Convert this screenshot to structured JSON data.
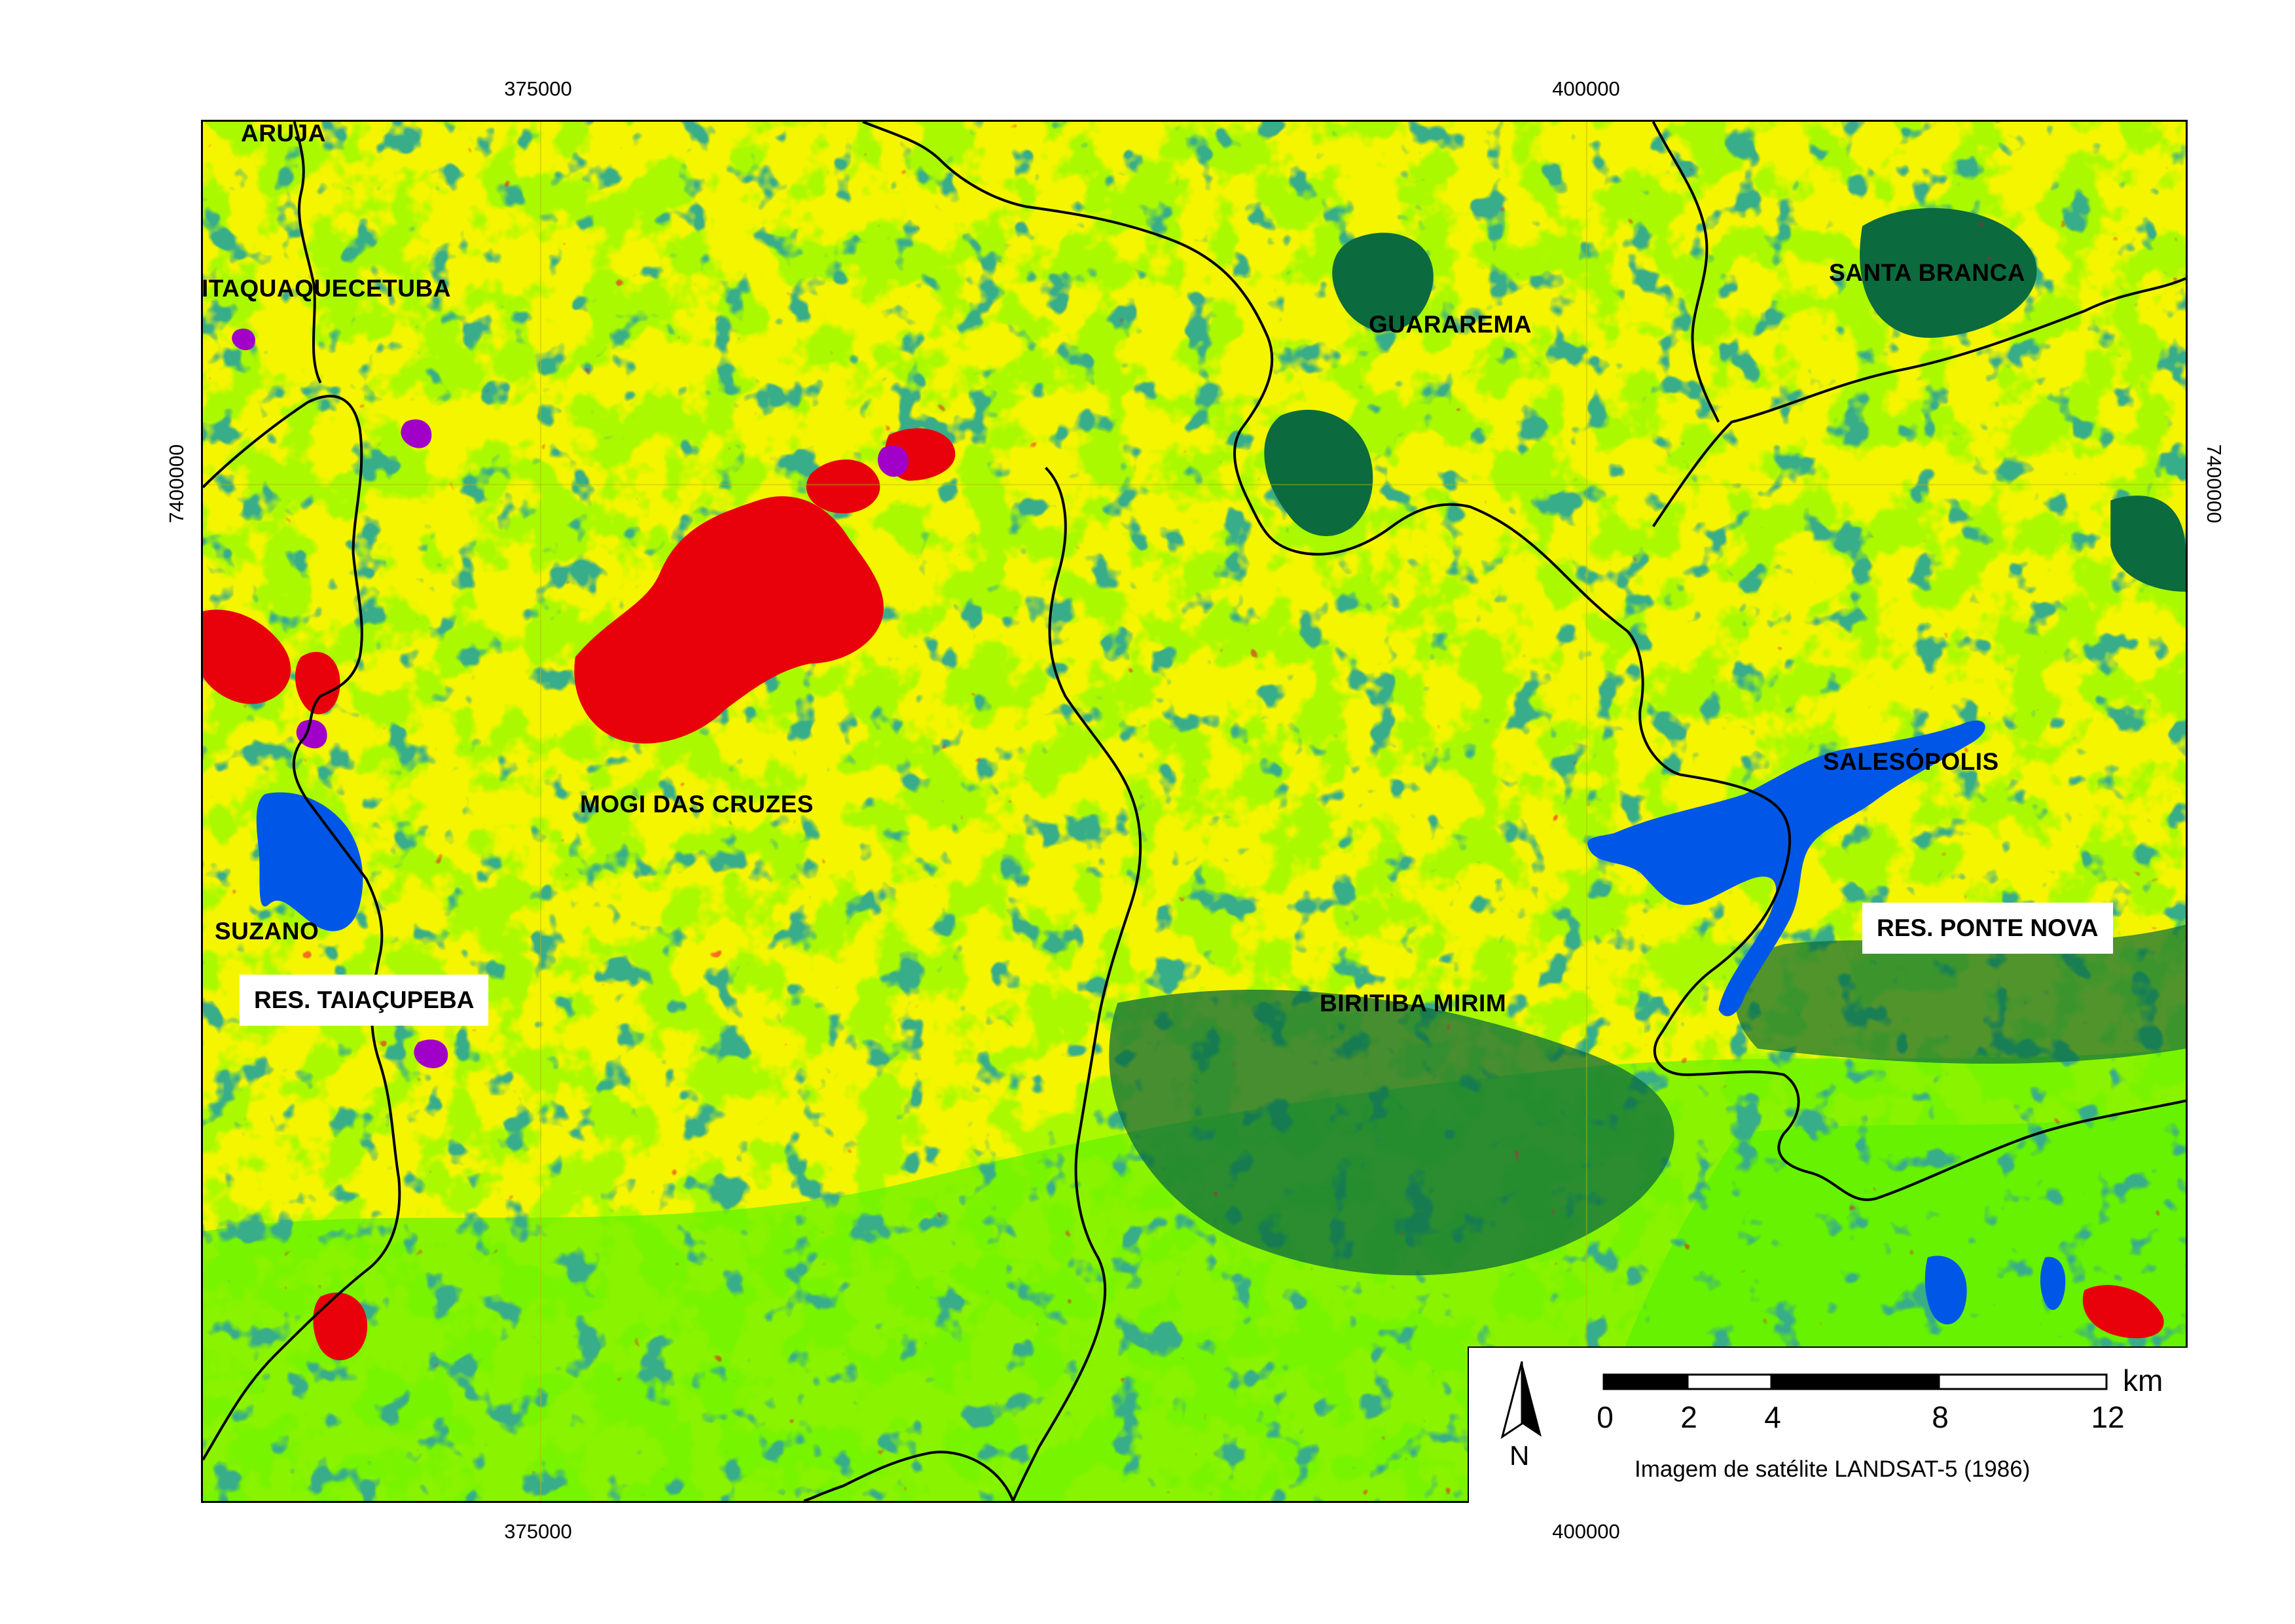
{
  "map": {
    "colors": {
      "yellow": "#f5f500",
      "light_green": "#66f200",
      "dark_green": "#0b6b3f",
      "red": "#e8000b",
      "blue": "#0057e7",
      "purple": "#a100c8",
      "boundary": "#000000"
    },
    "ticks": {
      "top": [
        "375000",
        "400000"
      ],
      "bottom": [
        "375000",
        "400000"
      ],
      "left": [
        "7400000"
      ],
      "right": [
        "7400000"
      ]
    },
    "places": {
      "aruja": "ARUJA",
      "itaquaquecetuba": "ITAQUAQUECETUBA",
      "guararema": "GUARAREMA",
      "santa_branca": "SANTA BRANCA",
      "mogi_das_cruzes": "MOGI DAS CRUZES",
      "salesopolis": "SALESÓPOLIS",
      "suzano": "SUZANO",
      "biritiba_mirim": "BIRITIBA MIRIM"
    },
    "reservoirs": {
      "taiacupeba": "RES. TAIAÇUPEBA",
      "ponte_nova": "RES. PONTE NOVA"
    }
  },
  "legend": {
    "north_label": "N",
    "scale_unit": "km",
    "scale_ticks": [
      "0",
      "2",
      "4",
      "8",
      "12"
    ],
    "caption": "Imagem de satélite LANDSAT-5 (1986)"
  }
}
